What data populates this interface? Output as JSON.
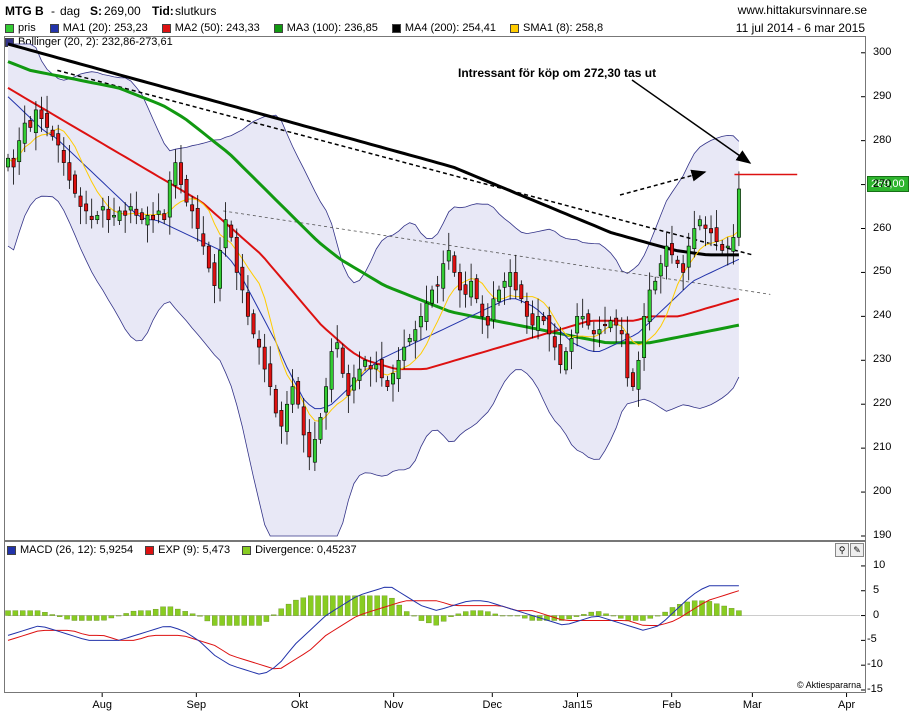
{
  "header": {
    "ticker": "MTG B",
    "separator": "-",
    "period": "dag",
    "price_label": "S:",
    "price_value": "269,00",
    "time_label": "Tid:",
    "time_value": "slutkurs",
    "site": "www.hittakursvinnare.se",
    "date_range": "11 jul 2014 - 6 mar 2015"
  },
  "legend_main": [
    {
      "label": "pris",
      "color": "#33cc33"
    },
    {
      "label": "MA1 (20): 253,23",
      "color": "#2233aa"
    },
    {
      "label": "MA2 (50): 243,33",
      "color": "#dd1111"
    },
    {
      "label": "MA3 (100): 236,85",
      "color": "#119911"
    },
    {
      "label": "MA4 (200): 254,41",
      "color": "#000000"
    },
    {
      "label": "SMA1 (8): 258,8",
      "color": "#ffcc00"
    }
  ],
  "legend_bollinger": {
    "label": "Bollinger (20, 2): 232,86-273,61",
    "color": "#333388"
  },
  "legend_macd": [
    {
      "label": "MACD (26, 12): 5,9254",
      "color": "#2233aa"
    },
    {
      "label": "EXP (9): 5,473",
      "color": "#dd1111"
    },
    {
      "label": "Divergence: 0,45237",
      "color": "#88cc22"
    }
  ],
  "annotation": "Intressant för köp om 272,30 tas ut",
  "last_price_tag": "269,00",
  "copyright": "© Aktiespararna",
  "colors": {
    "up": "#33cc33",
    "down": "#dd1111",
    "ma1": "#2233aa",
    "ma2": "#dd1111",
    "ma3": "#119911",
    "ma4": "#000000",
    "sma1": "#ffcc00",
    "boll_fill": "#e8e8f6",
    "boll_line": "#333388",
    "div": "#88cc22"
  },
  "chart_data": [
    {
      "type": "candlestick",
      "title": "MTG B - dag",
      "ylim": [
        190,
        302
      ],
      "y_ticks": [
        190,
        200,
        210,
        220,
        230,
        240,
        250,
        260,
        270,
        280,
        290,
        300
      ],
      "x_ticks": [
        "Aug",
        "Sep",
        "Okt",
        "Nov",
        "Dec",
        "Jan15",
        "Feb",
        "Mar",
        "Apr"
      ],
      "x_tick_days": [
        21,
        42,
        65,
        86,
        108,
        127,
        148,
        166,
        187
      ],
      "days_total": 190,
      "close_series": [
        276,
        274,
        280,
        284,
        283,
        287,
        285,
        283,
        281,
        279,
        275,
        271,
        268,
        265,
        264,
        262,
        263,
        265,
        262,
        263,
        264,
        263,
        265,
        263,
        262,
        263,
        262,
        264,
        262,
        271,
        275,
        270,
        266,
        264,
        260,
        256,
        251,
        247,
        255,
        262,
        258,
        250,
        246,
        240,
        236,
        233,
        228,
        224,
        218,
        215,
        220,
        224,
        220,
        213,
        208,
        212,
        217,
        224,
        232,
        234,
        227,
        222,
        226,
        228,
        230,
        228,
        229,
        226,
        224,
        227,
        230,
        233,
        235,
        237,
        240,
        243,
        246,
        247,
        252,
        255,
        250,
        246,
        245,
        248,
        244,
        240,
        238,
        244,
        246,
        248,
        250,
        246,
        244,
        240,
        238,
        240,
        239,
        236,
        233,
        229,
        232,
        235,
        240,
        240,
        238,
        236,
        237,
        238,
        239,
        238,
        236,
        226,
        224,
        230,
        240,
        246,
        248,
        252,
        256,
        254,
        252,
        250,
        256,
        260,
        262,
        260,
        259,
        257,
        255,
        256,
        258,
        269
      ],
      "ma1": [
        290,
        288,
        286,
        284,
        282,
        281,
        279,
        277,
        275,
        273,
        271,
        269,
        267,
        265,
        263,
        262,
        262,
        261,
        260,
        259,
        258,
        257,
        256,
        255,
        253,
        250,
        246,
        242,
        238,
        234,
        229,
        225,
        221,
        219,
        219,
        220,
        222,
        224,
        226,
        228,
        230,
        231,
        232,
        233,
        234,
        235,
        236,
        237,
        238,
        239,
        240,
        241,
        242,
        243,
        244,
        244,
        243,
        242,
        240,
        238,
        236,
        234,
        233,
        232,
        232,
        233,
        234,
        235,
        236,
        238,
        240,
        242,
        244,
        246,
        248,
        249,
        250,
        251,
        252,
        253
      ],
      "ma2": [
        292,
        290,
        288,
        286,
        284,
        282,
        280,
        278,
        276,
        274,
        272,
        270,
        268,
        266,
        263,
        260,
        257,
        254,
        250,
        246,
        242,
        238,
        235,
        232,
        230,
        229,
        228,
        228,
        228,
        229,
        230,
        231,
        232,
        233,
        234,
        235,
        236,
        237,
        238,
        239,
        239,
        239,
        239,
        240,
        240,
        240,
        241,
        242,
        243,
        244
      ],
      "ma3": [
        298,
        296,
        295,
        294,
        293,
        292,
        290,
        288,
        285,
        281,
        277,
        272,
        267,
        262,
        257,
        253,
        250,
        247,
        245,
        243,
        241,
        240,
        239,
        238,
        237,
        236,
        235,
        234,
        234,
        234,
        235,
        236,
        237,
        238
      ],
      "ma4": [
        302,
        300,
        298,
        296,
        294,
        292,
        290,
        288,
        286,
        284,
        282,
        280,
        278,
        276,
        274,
        271,
        268,
        265,
        262,
        259,
        257,
        255,
        254,
        254
      ],
      "trendline_upper": {
        "from": [
          11,
          296
        ],
        "to": [
          166,
          254
        ],
        "style": "dotted"
      },
      "trendline_lower": {
        "from": [
          48,
          264
        ],
        "to": [
          170,
          245
        ],
        "style": "dotted"
      },
      "resistance": 272.3
    },
    {
      "type": "line+bar",
      "title": "MACD (26, 12)",
      "ylim": [
        -15,
        12
      ],
      "y_ticks": [
        -15,
        -10,
        -5,
        0,
        5,
        10
      ],
      "series": [
        {
          "name": "MACD (26, 12)",
          "values": [
            -4,
            -3,
            -2,
            -3,
            -4,
            -5,
            -5,
            -5,
            -4,
            -3,
            -2,
            -3,
            -5,
            -8,
            -10,
            -11,
            -12,
            -10,
            -6,
            -3,
            0,
            2,
            4,
            5,
            6,
            4,
            2,
            1,
            2,
            3,
            3,
            2,
            1,
            0,
            -1,
            -2,
            -1,
            0,
            -1,
            -2,
            -3,
            -2,
            1,
            4,
            6,
            6,
            6
          ]
        },
        {
          "name": "EXP (9)",
          "values": [
            -5,
            -4,
            -3,
            -3,
            -3,
            -4,
            -4,
            -5,
            -5,
            -4,
            -4,
            -4,
            -5,
            -6,
            -8,
            -9,
            -10,
            -11,
            -9,
            -7,
            -4,
            -2,
            0,
            1,
            2,
            3,
            3,
            3,
            2,
            2,
            2,
            2,
            1,
            1,
            0,
            -1,
            -1,
            -1,
            -1,
            -1,
            -2,
            -2,
            -1,
            1,
            3,
            4,
            5
          ]
        },
        {
          "name": "Divergence",
          "values": [
            1,
            1,
            1,
            0,
            -1,
            -1,
            -1,
            0,
            1,
            1,
            2,
            1,
            0,
            -2,
            -2,
            -2,
            -2,
            1,
            3,
            4,
            4,
            4,
            4,
            4,
            4,
            1,
            -1,
            -2,
            0,
            1,
            1,
            0,
            0,
            -1,
            -1,
            -1,
            0,
            1,
            0,
            -1,
            -1,
            0,
            2,
            3,
            3,
            2,
            1
          ]
        }
      ]
    }
  ]
}
